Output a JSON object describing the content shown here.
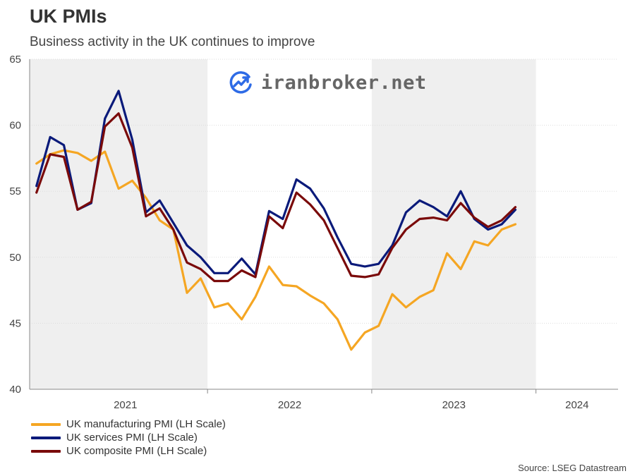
{
  "header": {
    "title": "UK PMIs",
    "subtitle": "Business activity in the UK continues to improve"
  },
  "watermark": {
    "text": "iranbroker.net"
  },
  "source": "Source: LSEG Datastream",
  "chart_data": {
    "type": "line",
    "title": "UK PMIs",
    "subtitle": "Business activity in the UK continues to improve",
    "x_unit": "month",
    "x": [
      "2020-12",
      "2021-01",
      "2021-02",
      "2021-03",
      "2021-04",
      "2021-05",
      "2021-06",
      "2021-07",
      "2021-08",
      "2021-09",
      "2021-10",
      "2021-11",
      "2021-12",
      "2022-01",
      "2022-02",
      "2022-03",
      "2022-04",
      "2022-05",
      "2022-06",
      "2022-07",
      "2022-08",
      "2022-09",
      "2022-10",
      "2022-11",
      "2022-12",
      "2023-01",
      "2023-02",
      "2023-03",
      "2023-04",
      "2023-05",
      "2023-06",
      "2023-07",
      "2023-08",
      "2023-09",
      "2023-10",
      "2023-11",
      "2023-12",
      "2024-01",
      "2024-02",
      "2024-03",
      "2024-04",
      "2024-05",
      "2024-06"
    ],
    "year_labels": [
      "2021",
      "2022",
      "2023",
      "2024"
    ],
    "shaded_years": [
      "2021",
      "2023"
    ],
    "ylim": [
      40,
      65
    ],
    "yticks": [
      40,
      45,
      50,
      55,
      60,
      65
    ],
    "grid": true,
    "legend_position": "bottom-left",
    "series": [
      {
        "name": "UK manufacturing PMI (LH Scale)",
        "color": "#F5A623",
        "values": [
          57.1,
          57.8,
          58.1,
          57.9,
          57.3,
          58.0,
          55.2,
          55.8,
          54.5,
          52.8,
          52.1,
          47.3,
          48.4,
          46.2,
          46.5,
          45.3,
          47.0,
          49.3,
          47.9,
          47.8,
          47.1,
          46.5,
          45.3,
          43.0,
          44.3,
          44.8,
          47.2,
          46.2,
          47.0,
          47.5,
          50.3,
          49.1,
          51.2,
          50.9,
          52.1,
          52.5,
          null,
          null,
          null,
          null,
          null,
          null,
          null
        ]
      },
      {
        "name": "UK services PMI (LH Scale)",
        "color": "#0A1A7A",
        "values": [
          55.4,
          59.1,
          58.5,
          53.6,
          54.1,
          60.5,
          62.6,
          58.9,
          53.4,
          54.3,
          52.6,
          50.9,
          50.0,
          48.8,
          48.8,
          49.9,
          48.7,
          53.5,
          52.9,
          55.9,
          55.2,
          53.7,
          51.5,
          49.5,
          49.3,
          49.5,
          50.9,
          53.4,
          54.3,
          53.8,
          53.1,
          55.0,
          52.9,
          52.1,
          52.5,
          53.6,
          null,
          null,
          null,
          null,
          null,
          null,
          null
        ]
      },
      {
        "name": "UK composite PMI (LH Scale)",
        "color": "#7A0A0A",
        "values": [
          54.9,
          57.8,
          57.6,
          53.6,
          54.2,
          59.9,
          60.9,
          58.3,
          53.1,
          53.7,
          52.1,
          49.6,
          49.1,
          48.2,
          48.2,
          49.0,
          48.5,
          53.1,
          52.2,
          54.9,
          54.0,
          52.8,
          50.7,
          48.6,
          48.5,
          48.7,
          50.7,
          52.1,
          52.9,
          53.0,
          52.8,
          54.1,
          53.0,
          52.3,
          52.8,
          53.8,
          null,
          null,
          null,
          null,
          null,
          null,
          null
        ]
      }
    ]
  }
}
